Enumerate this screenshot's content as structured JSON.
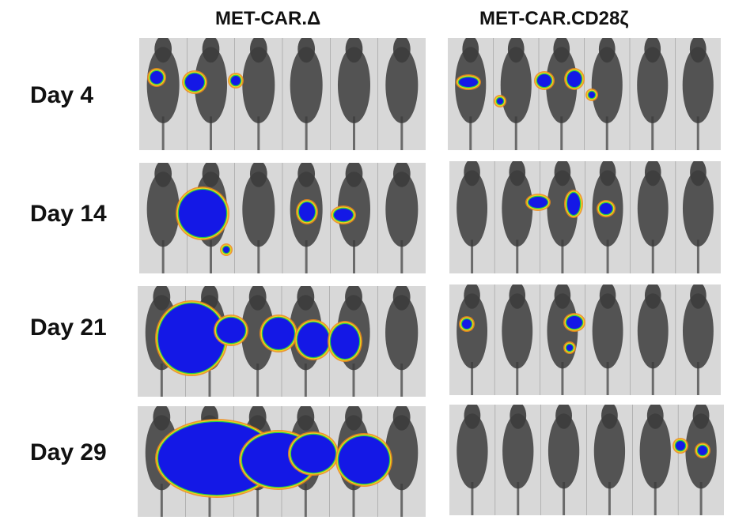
{
  "groups": [
    {
      "title": "MET-CAR.Δ"
    },
    {
      "title": "MET-CAR.CD28ζ"
    }
  ],
  "rows": [
    {
      "label": "Day 4"
    },
    {
      "label": "Day 14"
    },
    {
      "label": "Day 21"
    },
    {
      "label": "Day 29"
    }
  ],
  "colors": {
    "signal_core": "#1418e6",
    "signal_mid": "#22cc4a",
    "signal_edge": "#f0d020",
    "signal_outer": "#f08a1a",
    "mouse": "#3c3c3c",
    "background": "#d8d8d8"
  }
}
